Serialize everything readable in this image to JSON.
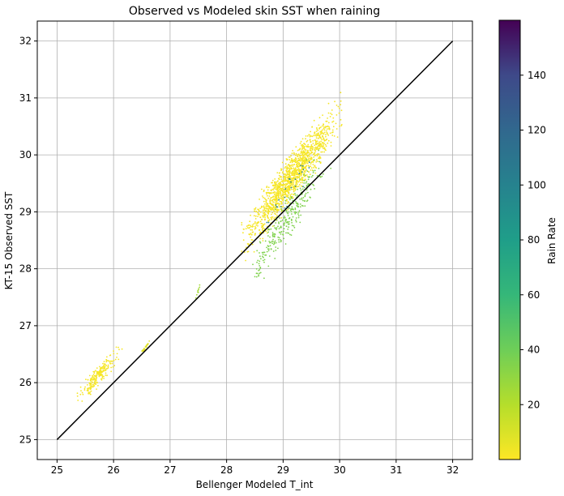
{
  "chart_data": {
    "type": "scatter",
    "title": "Observed vs Modeled skin SST when raining",
    "xlabel": "Bellenger Modeled T_int",
    "ylabel": "KT-15 Observed SST",
    "xlim": [
      24.65,
      32.35
    ],
    "ylim": [
      24.65,
      32.35
    ],
    "x_ticks": [
      25,
      26,
      27,
      28,
      29,
      30,
      31,
      32
    ],
    "y_ticks": [
      25,
      26,
      27,
      28,
      29,
      30,
      31,
      32
    ],
    "grid": true,
    "reference_line": {
      "x": [
        25,
        32
      ],
      "y": [
        25,
        32
      ],
      "color": "#000000"
    },
    "colorbar": {
      "label": "Rain Rate",
      "colormap": "viridis_r",
      "range": [
        0,
        160
      ],
      "ticks": [
        20,
        40,
        60,
        80,
        100,
        120,
        140
      ]
    },
    "clusters": [
      {
        "x_range": [
          25.25,
          26.2
        ],
        "y_range": [
          25.5,
          26.75
        ],
        "rain_rate": 2,
        "count": 220
      },
      {
        "x_range": [
          26.45,
          26.65
        ],
        "y_range": [
          26.45,
          26.75
        ],
        "rain_rate": 8,
        "count": 25
      },
      {
        "x_range": [
          27.45,
          27.55
        ],
        "y_range": [
          27.45,
          27.8
        ],
        "rain_rate": 25,
        "count": 10
      },
      {
        "x_range": [
          28.1,
          30.2
        ],
        "y_range": [
          28.0,
          31.2
        ],
        "rain_rate": 2,
        "count": 1400
      },
      {
        "x_range": [
          28.2,
          29.95
        ],
        "y_range": [
          27.3,
          30.5
        ],
        "rain_rate": 35,
        "count": 300
      },
      {
        "x_range": [
          28.5,
          29.7
        ],
        "y_range": [
          28.3,
          30.4
        ],
        "rain_rate": 100,
        "count": 25
      }
    ]
  }
}
